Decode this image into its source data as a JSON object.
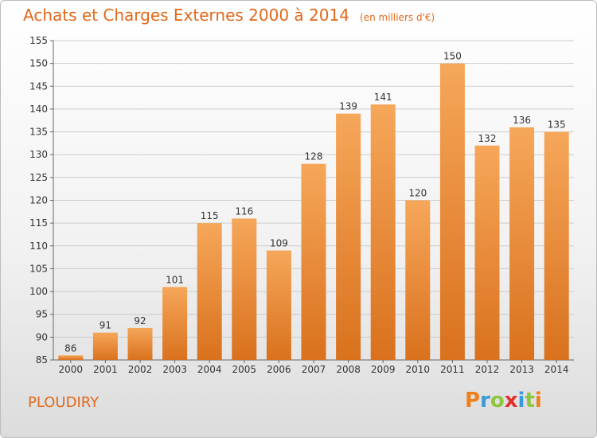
{
  "header": {
    "title": "Achats et Charges Externes 2000 à 2014",
    "subtitle": "(en milliers d'€)"
  },
  "place": "PLOUDIRY",
  "logo": {
    "letters": [
      "P",
      "r",
      "o",
      "x",
      "i",
      "t",
      "i"
    ],
    "colors": [
      "#f07f1a",
      "#3a9ad9",
      "#8dc63f",
      "#e2302b",
      "#3a9ad9",
      "#8dc63f",
      "#f07f1a"
    ]
  },
  "colors": {
    "bar_light": "#f6a75a",
    "bar_dark": "#d9711d",
    "title": "#e2681a",
    "grid": "#cccccc"
  },
  "chart_data": {
    "type": "bar",
    "categories": [
      "2000",
      "2001",
      "2002",
      "2003",
      "2004",
      "2005",
      "2006",
      "2007",
      "2008",
      "2009",
      "2010",
      "2011",
      "2012",
      "2013",
      "2014"
    ],
    "values": [
      86,
      91,
      92,
      101,
      115,
      116,
      109,
      128,
      139,
      141,
      120,
      150,
      132,
      136,
      135
    ],
    "ylim": [
      85,
      155
    ],
    "yticks": [
      85,
      90,
      95,
      100,
      105,
      110,
      115,
      120,
      125,
      130,
      135,
      140,
      145,
      150,
      155
    ],
    "grid": true,
    "legend": "none"
  }
}
